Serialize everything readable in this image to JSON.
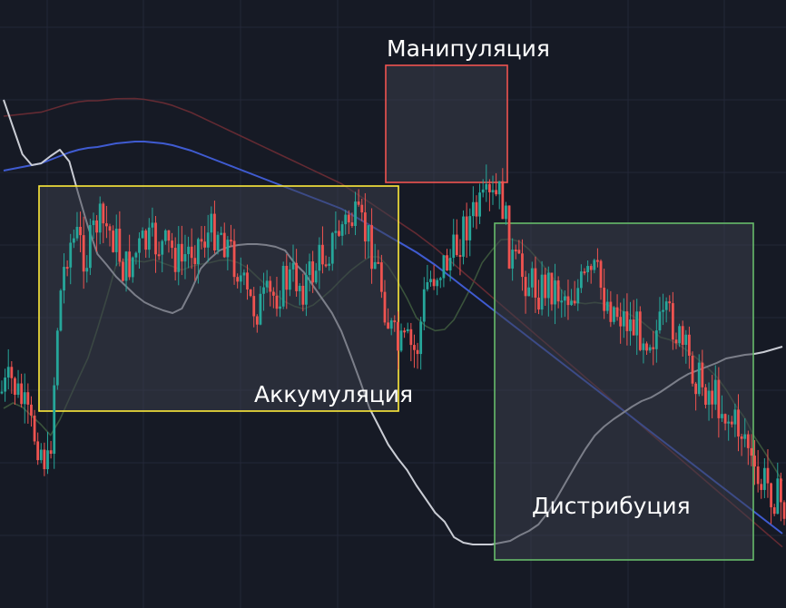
{
  "chart_data": {
    "type": "candlestick",
    "grid": true,
    "colors": {
      "background": "#161a25",
      "grid": "#232838",
      "bull": "#26a69a",
      "bear": "#ef5350",
      "ma_fast": "#c9ccd4",
      "ma_slow": "#3f5bd1",
      "ma_green": "#3e5a3e",
      "ma_red": "#6b2c34",
      "zone_fill": "#3a3e4b"
    },
    "zones": [
      {
        "label": "Аккумуляция",
        "border": "#ffeb3b",
        "x_start": 4,
        "x_end": 40
      },
      {
        "label": "Манипуляция",
        "border": "#ef5350",
        "x_start": 43,
        "x_end": 56
      },
      {
        "label": "Дистрибуция",
        "border": "#66bb6a",
        "x_start": 55,
        "x_end": 84
      }
    ],
    "close_series": [
      432,
      420,
      440,
      470,
      488,
      520,
      340,
      270,
      262,
      285,
      245,
      250,
      262,
      300,
      282,
      270,
      268,
      272,
      275,
      290,
      272,
      265,
      258,
      250,
      270,
      295,
      330,
      340,
      332,
      325,
      310,
      305,
      315,
      300,
      280,
      270,
      250,
      240,
      250,
      265,
      300,
      355,
      385,
      380,
      390,
      315,
      300,
      290,
      280,
      250,
      238,
      228,
      222,
      215,
      285,
      300,
      310,
      320,
      312,
      320,
      325,
      320,
      310,
      300,
      330,
      340,
      350,
      360,
      365,
      370,
      360,
      350,
      380,
      400,
      420,
      430,
      440,
      460,
      470,
      480,
      540,
      530,
      545,
      560
    ],
    "ma_fast": [
      110,
      140,
      170,
      182,
      180,
      172,
      165,
      178,
      215,
      250,
      280,
      292,
      305,
      315,
      325,
      333,
      338,
      342,
      345,
      340,
      320,
      296,
      285,
      276,
      272,
      270,
      269,
      269,
      270,
      272,
      276,
      290,
      300,
      315,
      330,
      345,
      365,
      392,
      420,
      450,
      470,
      490,
      505,
      518,
      535,
      550,
      565,
      575,
      592,
      598,
      600,
      600,
      600,
      598,
      596,
      590,
      585,
      578,
      565,
      548,
      530,
      512,
      495,
      480,
      470,
      462,
      455,
      448,
      442,
      438,
      432,
      425,
      418,
      412,
      408,
      404,
      400,
      395,
      393,
      391,
      390,
      388,
      385,
      382
    ],
    "ma_slow": [
      188,
      186,
      184,
      182,
      180,
      176,
      172,
      168,
      165,
      163,
      162,
      160,
      158,
      157,
      156,
      156,
      157,
      158,
      160,
      163,
      166,
      170,
      174,
      178,
      182,
      186,
      190,
      194,
      198,
      202,
      206,
      210,
      214,
      218,
      222,
      226,
      230,
      236,
      242,
      248,
      254,
      260,
      266,
      272,
      278,
      285,
      292,
      300,
      308,
      316,
      324,
      332,
      340,
      348,
      356,
      364,
      372,
      380,
      388,
      396,
      404,
      412,
      420,
      428,
      436,
      444,
      452,
      460,
      468,
      476,
      484,
      492,
      500,
      508,
      516,
      524,
      532,
      540,
      548,
      556,
      564,
      572,
      580,
      588
    ]
  },
  "labels": {
    "zone_accumulation": "Аккумуляция",
    "zone_manipulation": "Манипуляция",
    "zone_distribution": "Дистрибуция"
  }
}
